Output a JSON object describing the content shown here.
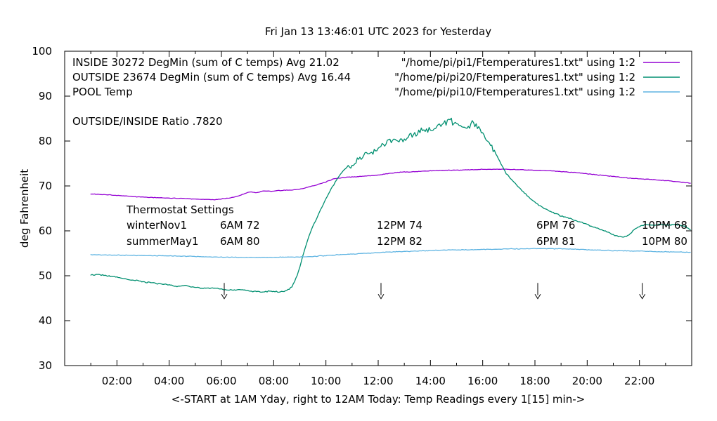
{
  "chart_data": {
    "type": "line",
    "title": "Fri Jan 13 13:46:01 UTC 2023 for Yesterday",
    "xlabel": "<-START at 1AM Yday, right to 12AM Today:  Temp Readings every 1[15] min->",
    "ylabel": "deg Fahrenheit",
    "xlim": [
      0,
      24
    ],
    "ylim": [
      30,
      100
    ],
    "grid": false,
    "xticks": [
      [
        2,
        "02:00"
      ],
      [
        4,
        "04:00"
      ],
      [
        6,
        "06:00"
      ],
      [
        8,
        "08:00"
      ],
      [
        10,
        "10:00"
      ],
      [
        12,
        "12:00"
      ],
      [
        14,
        "14:00"
      ],
      [
        16,
        "16:00"
      ],
      [
        18,
        "18:00"
      ],
      [
        20,
        "20:00"
      ],
      [
        22,
        "22:00"
      ]
    ],
    "yticks": [
      [
        30,
        "30"
      ],
      [
        40,
        "40"
      ],
      [
        50,
        "50"
      ],
      [
        60,
        "60"
      ],
      [
        70,
        "70"
      ],
      [
        80,
        "80"
      ],
      [
        90,
        "90"
      ],
      [
        100,
        "100"
      ]
    ],
    "legend": [
      {
        "label": "INSIDE 30272 DegMin (sum of C temps) Avg 21.02",
        "file": "\"/home/pi/pi1/Ftemperatures1.txt\" using 1:2",
        "color": "#9400d3"
      },
      {
        "label": "OUTSIDE 23674 DegMin (sum of C temps) Avg 16.44",
        "file": "\"/home/pi/pi20/Ftemperatures1.txt\" using 1:2",
        "color": "#008f70"
      },
      {
        "label": "POOL Temp",
        "file": "\"/home/pi/pi10/Ftemperatures1.txt\" using 1:2",
        "color": "#5fb4e2"
      }
    ],
    "ratio_note": "OUTSIDE/INSIDE Ratio .7820",
    "thermostat": {
      "heading": "Thermostat Settings",
      "rows": [
        {
          "label": "winterNov1",
          "cells": [
            "6AM 72",
            "12PM 74",
            "6PM 76",
            "10PM 68"
          ]
        },
        {
          "label": "summerMay1",
          "cells": [
            "6AM 80",
            "12PM 82",
            "6PM 81",
            "10PM 80"
          ]
        }
      ]
    },
    "arrows": {
      "hours": [
        6,
        12,
        18,
        22
      ],
      "top": 48.4,
      "tip": 44.9
    },
    "series": [
      {
        "id": "inside",
        "name": "INSIDE",
        "color": "#9400d3",
        "noise": 0.08,
        "points": [
          [
            1,
            68.2
          ],
          [
            1.5,
            68.1
          ],
          [
            2,
            67.9
          ],
          [
            2.5,
            67.7
          ],
          [
            3,
            67.5
          ],
          [
            3.5,
            67.4
          ],
          [
            4,
            67.3
          ],
          [
            4.5,
            67.2
          ],
          [
            5,
            67.1
          ],
          [
            5.4,
            67.0
          ],
          [
            5.7,
            66.9
          ],
          [
            6,
            67.1
          ],
          [
            6.3,
            67.3
          ],
          [
            6.6,
            67.7
          ],
          [
            6.9,
            68.3
          ],
          [
            7.1,
            68.7
          ],
          [
            7.35,
            68.5
          ],
          [
            7.6,
            68.9
          ],
          [
            7.9,
            68.8
          ],
          [
            8.3,
            69.0
          ],
          [
            8.7,
            69.1
          ],
          [
            9,
            69.3
          ],
          [
            9.5,
            70.0
          ],
          [
            10,
            70.9
          ],
          [
            10.3,
            71.6
          ],
          [
            10.7,
            71.9
          ],
          [
            11,
            72.0
          ],
          [
            11.5,
            72.2
          ],
          [
            12,
            72.4
          ],
          [
            12.4,
            72.8
          ],
          [
            12.7,
            73.0
          ],
          [
            13,
            73.1
          ],
          [
            13.5,
            73.2
          ],
          [
            14,
            73.4
          ],
          [
            14.5,
            73.5
          ],
          [
            15,
            73.5
          ],
          [
            15.5,
            73.6
          ],
          [
            16,
            73.7
          ],
          [
            16.5,
            73.7
          ],
          [
            17,
            73.7
          ],
          [
            17.5,
            73.6
          ],
          [
            18,
            73.5
          ],
          [
            18.5,
            73.4
          ],
          [
            19,
            73.2
          ],
          [
            19.5,
            73.0
          ],
          [
            20,
            72.7
          ],
          [
            20.5,
            72.4
          ],
          [
            21,
            72.1
          ],
          [
            21.5,
            71.8
          ],
          [
            22,
            71.6
          ],
          [
            22.5,
            71.4
          ],
          [
            23,
            71.2
          ],
          [
            23.4,
            71.0
          ],
          [
            23.7,
            70.8
          ],
          [
            23.95,
            70.6
          ]
        ]
      },
      {
        "id": "outside",
        "name": "OUTSIDE",
        "color": "#008f70",
        "noise": 0.16,
        "noise_zones": [
          [
            10.7,
            16.5,
            0.9
          ]
        ],
        "points": [
          [
            1,
            50.1
          ],
          [
            1.3,
            50.3
          ],
          [
            1.6,
            50.0
          ],
          [
            2,
            49.7
          ],
          [
            2.5,
            49.1
          ],
          [
            3,
            48.7
          ],
          [
            3.5,
            48.3
          ],
          [
            4,
            48.0
          ],
          [
            4.3,
            47.6
          ],
          [
            4.6,
            47.8
          ],
          [
            5,
            47.4
          ],
          [
            5.3,
            47.2
          ],
          [
            5.7,
            47.3
          ],
          [
            6,
            47.0
          ],
          [
            6.4,
            46.8
          ],
          [
            6.8,
            46.9
          ],
          [
            7.2,
            46.5
          ],
          [
            7.6,
            46.4
          ],
          [
            7.9,
            46.6
          ],
          [
            8.2,
            46.4
          ],
          [
            8.5,
            46.7
          ],
          [
            8.7,
            47.5
          ],
          [
            8.9,
            50.0
          ],
          [
            9.1,
            54.0
          ],
          [
            9.3,
            58.0
          ],
          [
            9.5,
            61.0
          ],
          [
            9.7,
            63.5
          ],
          [
            9.9,
            66.0
          ],
          [
            10.1,
            68.3
          ],
          [
            10.35,
            70.8
          ],
          [
            10.6,
            73.0
          ],
          [
            10.9,
            74.4
          ],
          [
            11.3,
            76.0
          ],
          [
            11.75,
            77.5
          ],
          [
            12.2,
            79.0
          ],
          [
            12.65,
            80.4
          ],
          [
            13,
            80.0
          ],
          [
            13.3,
            81.3
          ],
          [
            13.6,
            82.2
          ],
          [
            14,
            82.6
          ],
          [
            14.45,
            83.8
          ],
          [
            14.7,
            84.6
          ],
          [
            15,
            83.8
          ],
          [
            15.3,
            83.0
          ],
          [
            15.6,
            84.0
          ],
          [
            15.9,
            82.3
          ],
          [
            16.1,
            81.0
          ],
          [
            16.35,
            78.8
          ],
          [
            16.6,
            76.0
          ],
          [
            16.9,
            72.8
          ],
          [
            17.2,
            70.8
          ],
          [
            17.5,
            69.0
          ],
          [
            17.8,
            67.3
          ],
          [
            18.1,
            65.9
          ],
          [
            18.5,
            64.6
          ],
          [
            19,
            63.3
          ],
          [
            19.4,
            62.6
          ],
          [
            19.7,
            62.1
          ],
          [
            20,
            61.4
          ],
          [
            20.4,
            60.6
          ],
          [
            20.8,
            59.7
          ],
          [
            21.1,
            58.9
          ],
          [
            21.4,
            58.6
          ],
          [
            21.6,
            59.0
          ],
          [
            21.8,
            60.3
          ],
          [
            22,
            61.0
          ],
          [
            22.2,
            61.4
          ],
          [
            22.5,
            61.3
          ],
          [
            22.8,
            61.4
          ],
          [
            23.1,
            61.3
          ],
          [
            23.4,
            61.4
          ],
          [
            23.7,
            61.1
          ],
          [
            23.95,
            60.2
          ]
        ]
      },
      {
        "id": "pool",
        "name": "POOL",
        "color": "#5fb4e2",
        "noise": 0.09,
        "points": [
          [
            1,
            54.7
          ],
          [
            1.5,
            54.65
          ],
          [
            2,
            54.6
          ],
          [
            2.5,
            54.55
          ],
          [
            3,
            54.5
          ],
          [
            3.5,
            54.45
          ],
          [
            4,
            54.4
          ],
          [
            4.5,
            54.35
          ],
          [
            5,
            54.3
          ],
          [
            5.5,
            54.2
          ],
          [
            6,
            54.15
          ],
          [
            6.5,
            54.1
          ],
          [
            7,
            54.1
          ],
          [
            7.5,
            54.1
          ],
          [
            8,
            54.1
          ],
          [
            8.5,
            54.15
          ],
          [
            9,
            54.2
          ],
          [
            9.5,
            54.3
          ],
          [
            10,
            54.5
          ],
          [
            10.5,
            54.7
          ],
          [
            11,
            54.85
          ],
          [
            11.5,
            55.0
          ],
          [
            12,
            55.15
          ],
          [
            12.5,
            55.3
          ],
          [
            13,
            55.4
          ],
          [
            13.5,
            55.5
          ],
          [
            14,
            55.6
          ],
          [
            14.5,
            55.7
          ],
          [
            15,
            55.75
          ],
          [
            15.5,
            55.8
          ],
          [
            16,
            55.85
          ],
          [
            16.5,
            55.9
          ],
          [
            17,
            56.0
          ],
          [
            17.5,
            56.0
          ],
          [
            18,
            56.05
          ],
          [
            18.5,
            56.0
          ],
          [
            19,
            56.0
          ],
          [
            19.5,
            55.9
          ],
          [
            20,
            55.8
          ],
          [
            20.5,
            55.7
          ],
          [
            21,
            55.6
          ],
          [
            21.5,
            55.55
          ],
          [
            22,
            55.5
          ],
          [
            22.5,
            55.4
          ],
          [
            23,
            55.35
          ],
          [
            23.5,
            55.3
          ],
          [
            23.95,
            55.2
          ]
        ]
      }
    ]
  }
}
